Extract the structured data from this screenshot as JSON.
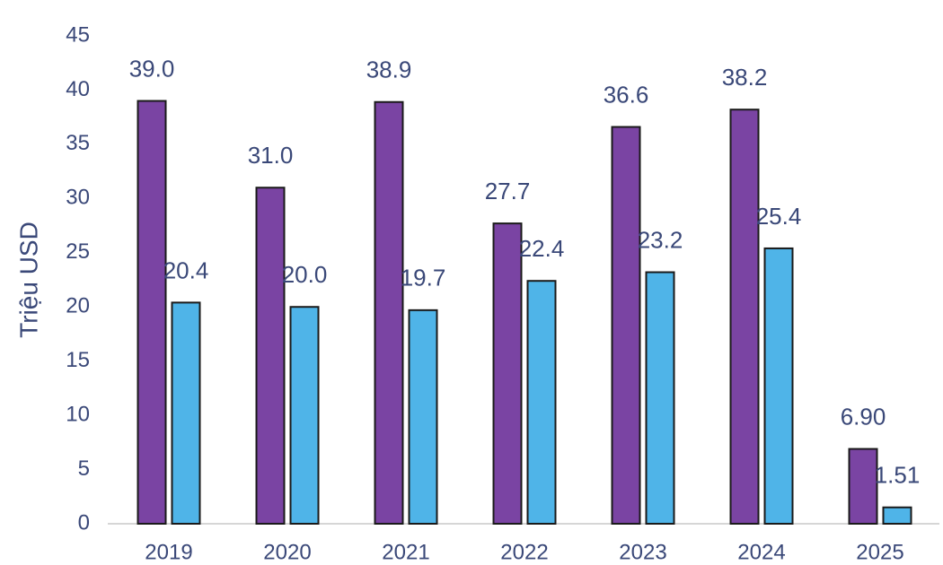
{
  "chart_data": {
    "type": "bar",
    "y_label": "Triệu USD",
    "categories": [
      "2019",
      "2020",
      "2021",
      "2022",
      "2023",
      "2024",
      "2025"
    ],
    "series": [
      {
        "color": "#7a44a3",
        "values": [
          39.0,
          31.0,
          38.9,
          27.7,
          36.6,
          38.2,
          6.9
        ],
        "value_labels": [
          "39.0",
          "31.0",
          "38.9",
          "27.7",
          "36.6",
          "38.2",
          "6.90"
        ]
      },
      {
        "color": "#4fb4e8",
        "values": [
          20.4,
          20.0,
          19.7,
          22.4,
          23.2,
          25.4,
          1.51
        ],
        "value_labels": [
          "20.4",
          "20.0",
          "19.7",
          "22.4",
          "23.2",
          "25.4",
          "1.51"
        ]
      }
    ],
    "ylim": [
      0,
      45
    ],
    "yticks": [
      0,
      5,
      10,
      15,
      20,
      25,
      30,
      35,
      40,
      45
    ]
  }
}
